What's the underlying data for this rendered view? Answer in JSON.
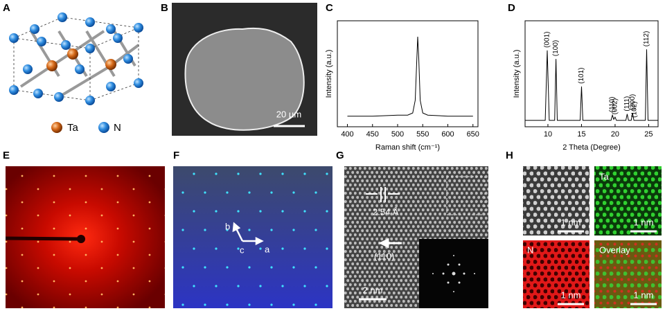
{
  "panel_a": {
    "label": "A",
    "legend": [
      "Ta",
      "N"
    ]
  },
  "panel_b": {
    "label": "B",
    "scale_bar": "20 µm"
  },
  "chart_data": [
    {
      "type": "line",
      "label": "C",
      "xlabel": "Raman shift (cm⁻¹)",
      "ylabel": "Intensity (a.u.)",
      "xlim": [
        380,
        660
      ],
      "ylim": [
        0,
        100
      ],
      "xticks": [
        400,
        450,
        500,
        550,
        600,
        650
      ],
      "series": [
        {
          "color": "#000000",
          "x": [
            400,
            450,
            500,
            520,
            530,
            535,
            538,
            540,
            542,
            545,
            550,
            560,
            600,
            650
          ],
          "values": [
            10,
            10,
            11,
            11,
            13,
            25,
            60,
            85,
            65,
            25,
            13,
            11,
            10,
            10
          ]
        }
      ]
    },
    {
      "type": "line",
      "label": "D",
      "xlabel": "2 Theta (Degree)",
      "ylabel": "Intensity (a.u.)",
      "xlim": [
        6.6,
        26.4
      ],
      "ylim": [
        0,
        100
      ],
      "xticks": [
        10,
        15,
        20,
        25
      ],
      "series": [
        {
          "color": "#000000",
          "x": [
            6.6,
            9.6,
            9.9,
            10.2,
            11.0,
            11.2,
            11.4,
            14.8,
            15.0,
            15.2,
            19.4,
            19.6,
            19.8,
            20.0,
            20.2,
            21.6,
            21.8,
            22.0,
            22.4,
            22.6,
            22.8,
            24.5,
            24.7,
            24.9,
            26.4
          ],
          "values": [
            6,
            6,
            72,
            6,
            6,
            64,
            6,
            6,
            38,
            6,
            6,
            11,
            7,
            9,
            6,
            6,
            12,
            6,
            6,
            13,
            6,
            6,
            73,
            6,
            6
          ]
        }
      ],
      "annotations": [
        {
          "text": "(001)",
          "x": 9.9
        },
        {
          "text": "(100)",
          "x": 11.2
        },
        {
          "text": "(101)",
          "x": 15.0
        },
        {
          "text": "(110)",
          "x": 19.6
        },
        {
          "text": "(002)",
          "x": 20.0
        },
        {
          "text": "(111)",
          "x": 21.8
        },
        {
          "text": "(200)",
          "x": 22.6
        },
        {
          "text": "(102)",
          "x": 22.9
        },
        {
          "text": "(112)",
          "x": 24.7
        }
      ]
    }
  ],
  "panel_e": {
    "label": "E"
  },
  "panel_f": {
    "label": "F",
    "axes": [
      "a",
      "b",
      "c"
    ]
  },
  "panel_g": {
    "label": "G",
    "spacing": "2.54 Å",
    "direction": "(110)",
    "scale_bar": "2 nm"
  },
  "panel_h": {
    "label": "H",
    "maps": [
      "Ta",
      "N",
      "Overlay"
    ],
    "scale_bar": "1 nm"
  }
}
